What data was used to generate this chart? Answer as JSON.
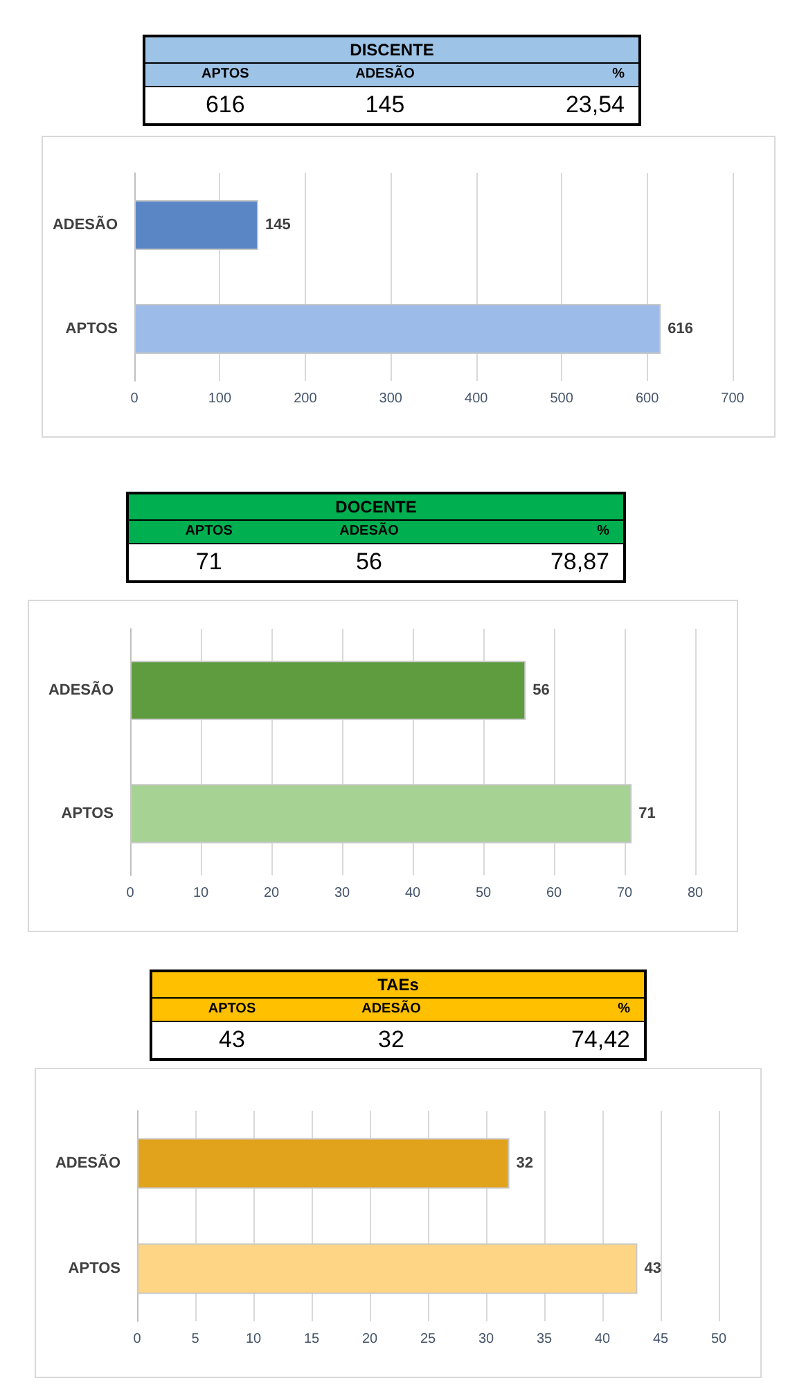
{
  "chart_data": [
    {
      "type": "bar",
      "orientation": "horizontal",
      "title": "DISCENTE",
      "annotations": [
        "APTOS",
        "ADESÃO",
        "%",
        "616",
        "145",
        "23,54"
      ],
      "categories": [
        "ADESÃO",
        "APTOS"
      ],
      "values": [
        145,
        616
      ],
      "colors": [
        "#5b86c6",
        "#9dbbe8"
      ],
      "xlim": [
        0,
        700
      ],
      "xticks": [
        0,
        100,
        200,
        300,
        400,
        500,
        600,
        700
      ],
      "grid": "x",
      "data_labels": true
    },
    {
      "type": "bar",
      "orientation": "horizontal",
      "title": "DOCENTE",
      "annotations": [
        "APTOS",
        "ADESÃO",
        "%",
        "71",
        "56",
        "78,87"
      ],
      "categories": [
        "ADESÃO",
        "APTOS"
      ],
      "values": [
        56,
        71
      ],
      "colors": [
        "#5e9c3f",
        "#a6d293"
      ],
      "xlim": [
        0,
        80
      ],
      "xticks": [
        0,
        10,
        20,
        30,
        40,
        50,
        60,
        70,
        80
      ],
      "grid": "x",
      "data_labels": true
    },
    {
      "type": "bar",
      "orientation": "horizontal",
      "title": "TAEs",
      "annotations": [
        "APTOS",
        "ADESÃO",
        "%",
        "43",
        "32",
        "74,42"
      ],
      "categories": [
        "ADESÃO",
        "APTOS"
      ],
      "values": [
        32,
        43
      ],
      "colors": [
        "#e2a31c",
        "#fdd585"
      ],
      "xlim": [
        0,
        50
      ],
      "xticks": [
        0,
        5,
        10,
        15,
        20,
        25,
        30,
        35,
        40,
        45,
        50
      ],
      "grid": "x",
      "data_labels": true
    }
  ]
}
